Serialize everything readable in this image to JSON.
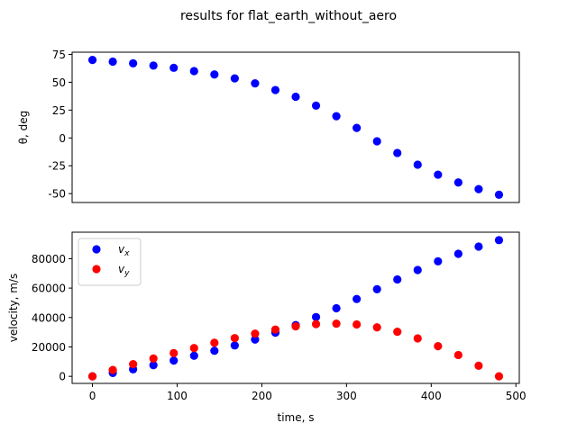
{
  "figure": {
    "suptitle": "results for flat_earth_without_aero"
  },
  "chart_data": [
    {
      "type": "scatter",
      "xlabel": "",
      "ylabel": "θ, deg",
      "xlim": [
        -24,
        504
      ],
      "ylim": [
        -58,
        77
      ],
      "yticks": [
        -50,
        -25,
        0,
        25,
        50,
        75
      ],
      "xticks": [],
      "x": [
        0,
        24,
        48,
        72,
        96,
        120,
        144,
        168,
        192,
        216,
        240,
        264,
        288,
        312,
        336,
        360,
        384,
        408,
        432,
        456,
        480
      ],
      "series": [
        {
          "name": "",
          "color": "#0000ff",
          "values": [
            70,
            68.5,
            67,
            65,
            63,
            60,
            57,
            53.5,
            49,
            43,
            37,
            29,
            19.5,
            9,
            -3,
            -13.5,
            -24,
            -33,
            -40,
            -46,
            -51
          ]
        }
      ]
    },
    {
      "type": "scatter",
      "xlabel": "time, s",
      "ylabel": "velocity, m/s",
      "xlim": [
        -24,
        504
      ],
      "ylim": [
        -4800,
        98000
      ],
      "xticks": [
        0,
        100,
        200,
        300,
        400,
        500
      ],
      "yticks": [
        0,
        20000,
        40000,
        60000,
        80000
      ],
      "legend": "top-left",
      "x": [
        0,
        24,
        48,
        72,
        96,
        120,
        144,
        168,
        192,
        216,
        240,
        264,
        288,
        312,
        336,
        360,
        384,
        408,
        432,
        456,
        480
      ],
      "series": [
        {
          "name": "v_x",
          "name_main": "v",
          "name_sub": "x",
          "color": "#0000ff",
          "values": [
            0,
            2300,
            4800,
            7600,
            10700,
            14000,
            17400,
            21000,
            25000,
            29700,
            34800,
            40300,
            46300,
            52600,
            59200,
            65900,
            72300,
            78200,
            83300,
            88200,
            92600
          ]
        },
        {
          "name": "v_y",
          "name_main": "v",
          "name_sub": "y",
          "color": "#ff0000",
          "values": [
            0,
            4300,
            8300,
            12100,
            15800,
            19200,
            22800,
            26000,
            29000,
            31800,
            34000,
            35500,
            35800,
            35300,
            33300,
            30300,
            25800,
            20500,
            14500,
            7200,
            0
          ]
        }
      ]
    }
  ]
}
